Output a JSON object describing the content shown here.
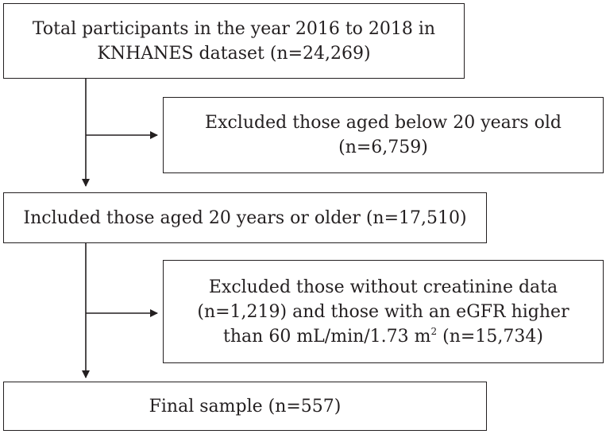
{
  "flowchart": {
    "box_total": {
      "line1": "Total participants in the year 2016 to 2018 in",
      "line2": "KNHANES dataset (n=24,269)"
    },
    "box_excluded_age": {
      "line1": "Excluded those aged below 20 years old",
      "line2": "(n=6,759)"
    },
    "box_included": {
      "line1": "Included those aged 20 years or older (n=17,510)"
    },
    "box_excluded_egfr": {
      "line1": "Excluded those without creatinine data",
      "line2": "(n=1,219) and those with an eGFR higher",
      "line3_before_sup": "than 60 mL/min/1.73 m",
      "line3_sup": "2",
      "line3_after_sup": " (n=15,734)"
    },
    "box_final": {
      "line1": "Final sample (n=557)"
    }
  }
}
